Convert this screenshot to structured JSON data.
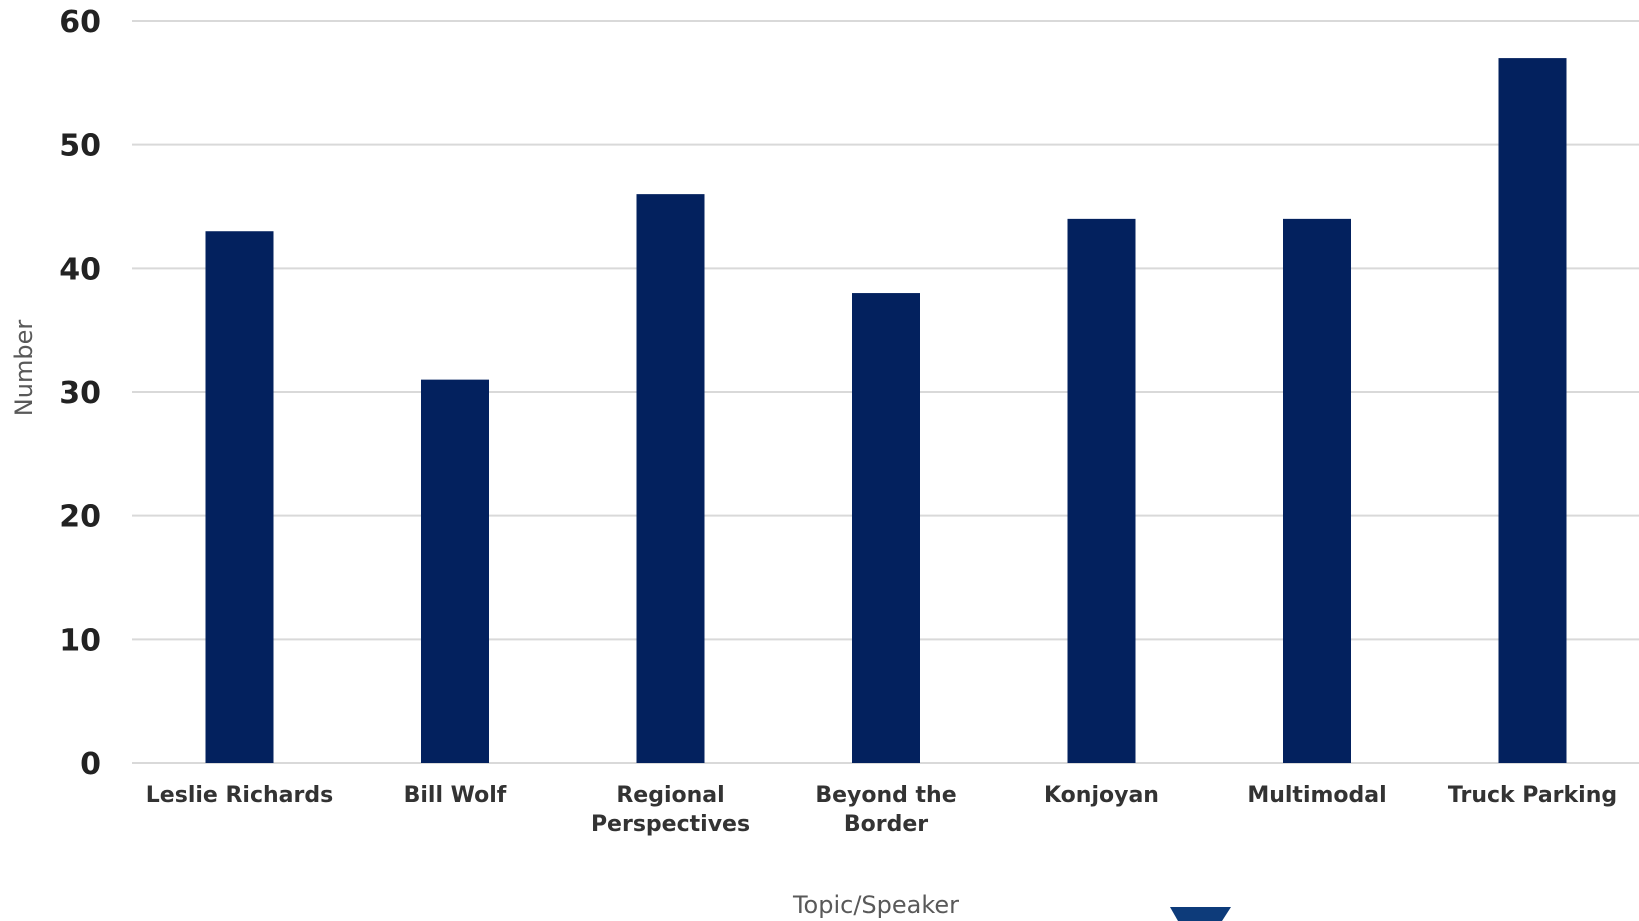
{
  "chart_data": {
    "type": "bar",
    "title": "",
    "xlabel": "Topic/Speaker",
    "ylabel": "Number",
    "categories": [
      "Leslie Richards",
      "Bill Wolf",
      "Regional Perspectives",
      "Beyond the Border",
      "Konjoyan",
      "Multimodal",
      "Truck Parking"
    ],
    "category_lines": [
      [
        "Leslie Richards"
      ],
      [
        "Bill Wolf"
      ],
      [
        "Regional",
        "Perspectives"
      ],
      [
        "Beyond the",
        "Border"
      ],
      [
        "Konjoyan"
      ],
      [
        "Multimodal"
      ],
      [
        "Truck Parking"
      ]
    ],
    "values": [
      43,
      31,
      46,
      38,
      44,
      44,
      57
    ],
    "ylim": [
      0,
      60
    ],
    "yticks": [
      0,
      10,
      20,
      30,
      40,
      50,
      60
    ],
    "grid": true,
    "legend": "none",
    "colors": {
      "bar": "#03215e",
      "grid": "#d9d9d9",
      "logo": "#0d3b7a"
    }
  },
  "logo": {
    "icon": "shield-logo-icon"
  }
}
